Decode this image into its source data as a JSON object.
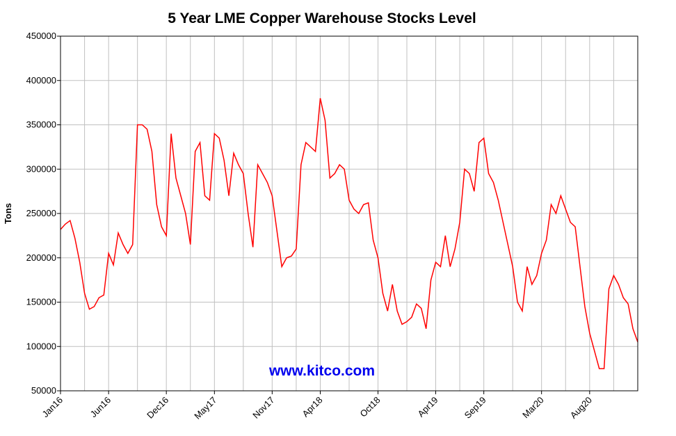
{
  "chart_data": {
    "type": "line",
    "title": "5 Year LME Copper Warehouse Stocks Level",
    "y_label": "Tons",
    "annotation": "www.kitco.com",
    "categories": [
      "Jan16",
      null,
      null,
      null,
      null,
      null,
      null,
      null,
      null,
      null,
      "Jun16",
      null,
      null,
      null,
      null,
      null,
      null,
      null,
      null,
      null,
      null,
      null,
      "Dec16",
      null,
      null,
      null,
      null,
      null,
      null,
      null,
      null,
      null,
      "May17",
      null,
      null,
      null,
      null,
      null,
      null,
      null,
      null,
      null,
      null,
      null,
      "Nov17",
      null,
      null,
      null,
      null,
      null,
      null,
      null,
      null,
      null,
      "Apr18",
      null,
      null,
      null,
      null,
      null,
      null,
      null,
      null,
      null,
      null,
      null,
      "Oct18",
      null,
      null,
      null,
      null,
      null,
      null,
      null,
      null,
      null,
      null,
      null,
      "Apr19",
      null,
      null,
      null,
      null,
      null,
      null,
      null,
      null,
      null,
      "Sep19",
      null,
      null,
      null,
      null,
      null,
      null,
      null,
      null,
      null,
      null,
      null,
      "Mar20",
      null,
      null,
      null,
      null,
      null,
      null,
      null,
      null,
      null,
      "Aug20",
      null,
      null,
      null,
      null,
      null,
      null,
      null,
      null,
      null,
      null
    ],
    "series": [
      {
        "name": "Stocks",
        "color": "#ff0000",
        "values": [
          232000,
          238000,
          242000,
          222000,
          195000,
          160000,
          142000,
          145000,
          155000,
          158000,
          205000,
          192000,
          228000,
          215000,
          205000,
          215000,
          350000,
          350000,
          345000,
          320000,
          260000,
          235000,
          225000,
          340000,
          290000,
          270000,
          250000,
          215000,
          320000,
          330000,
          270000,
          265000,
          340000,
          335000,
          310000,
          270000,
          318000,
          305000,
          295000,
          250000,
          212000,
          305000,
          295000,
          285000,
          270000,
          230000,
          190000,
          200000,
          202000,
          210000,
          305000,
          330000,
          325000,
          320000,
          380000,
          355000,
          290000,
          295000,
          305000,
          300000,
          265000,
          255000,
          250000,
          260000,
          262000,
          220000,
          200000,
          160000,
          140000,
          170000,
          140000,
          125000,
          128000,
          133000,
          148000,
          143000,
          120000,
          175000,
          195000,
          190000,
          225000,
          190000,
          210000,
          240000,
          300000,
          295000,
          275000,
          330000,
          335000,
          295000,
          285000,
          265000,
          240000,
          215000,
          190000,
          150000,
          140000,
          190000,
          170000,
          180000,
          205000,
          220000,
          260000,
          250000,
          270000,
          255000,
          240000,
          235000,
          190000,
          145000,
          115000,
          95000,
          75000,
          75000,
          165000,
          180000,
          170000,
          155000,
          148000,
          120000,
          105000
        ]
      }
    ],
    "ylim": [
      50000,
      450000
    ],
    "yticks": [
      50000,
      100000,
      150000,
      200000,
      250000,
      300000,
      350000,
      400000,
      450000
    ],
    "grid": true
  }
}
